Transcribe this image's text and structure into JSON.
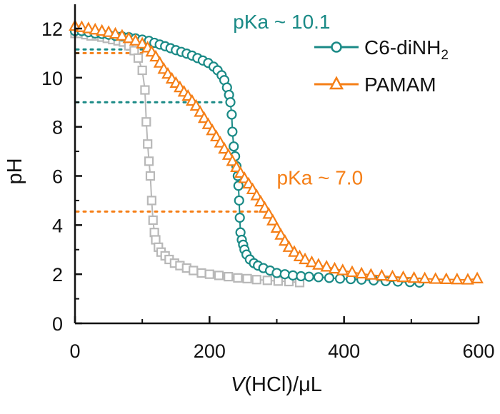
{
  "chart_data": {
    "type": "scatter",
    "title": "",
    "xlabel_italic": "V",
    "xlabel_rest": "(HCl)/μL",
    "ylabel": "pH",
    "xlim": [
      0,
      600
    ],
    "ylim": [
      0,
      13
    ],
    "xticks": [
      0,
      200,
      400,
      600
    ],
    "yticks": [
      0,
      2,
      4,
      6,
      8,
      10,
      12
    ],
    "grid": false,
    "legend_position": "top-right",
    "colors": {
      "c6": "#1a8a86",
      "pamam": "#f57f17",
      "control": "#b8b8b8",
      "axis": "#111111"
    },
    "series": [
      {
        "name": "control",
        "label": "",
        "marker": "square",
        "points": [
          [
            0,
            11.8
          ],
          [
            8,
            11.8
          ],
          [
            16,
            11.75
          ],
          [
            24,
            11.7
          ],
          [
            32,
            11.7
          ],
          [
            40,
            11.65
          ],
          [
            48,
            11.6
          ],
          [
            56,
            11.55
          ],
          [
            64,
            11.5
          ],
          [
            72,
            11.45
          ],
          [
            80,
            11.3
          ],
          [
            88,
            11.1
          ],
          [
            94,
            10.8
          ],
          [
            100,
            10.3
          ],
          [
            104,
            9.5
          ],
          [
            106,
            8.2
          ],
          [
            108,
            7.3
          ],
          [
            110,
            6.6
          ],
          [
            112,
            6.0
          ],
          [
            114,
            5.0
          ],
          [
            116,
            4.2
          ],
          [
            118,
            3.7
          ],
          [
            120,
            3.4
          ],
          [
            124,
            3.1
          ],
          [
            128,
            2.9
          ],
          [
            134,
            2.75
          ],
          [
            140,
            2.6
          ],
          [
            148,
            2.45
          ],
          [
            156,
            2.35
          ],
          [
            166,
            2.25
          ],
          [
            176,
            2.15
          ],
          [
            188,
            2.05
          ],
          [
            200,
            2.0
          ],
          [
            214,
            1.95
          ],
          [
            228,
            1.9
          ],
          [
            242,
            1.85
          ],
          [
            256,
            1.82
          ],
          [
            270,
            1.78
          ],
          [
            286,
            1.75
          ],
          [
            302,
            1.72
          ],
          [
            318,
            1.7
          ],
          [
            334,
            1.66
          ]
        ]
      },
      {
        "name": "C6-diNH2",
        "label_main": "C6-diNH",
        "label_sub": "2",
        "marker": "circle",
        "points": [
          [
            0,
            11.9
          ],
          [
            10,
            11.9
          ],
          [
            20,
            11.85
          ],
          [
            30,
            11.8
          ],
          [
            40,
            11.78
          ],
          [
            50,
            11.75
          ],
          [
            60,
            11.7
          ],
          [
            70,
            11.68
          ],
          [
            80,
            11.65
          ],
          [
            90,
            11.6
          ],
          [
            100,
            11.55
          ],
          [
            110,
            11.5
          ],
          [
            118,
            11.42
          ],
          [
            126,
            11.35
          ],
          [
            134,
            11.28
          ],
          [
            142,
            11.2
          ],
          [
            150,
            11.12
          ],
          [
            158,
            11.05
          ],
          [
            166,
            10.98
          ],
          [
            174,
            10.9
          ],
          [
            182,
            10.8
          ],
          [
            190,
            10.7
          ],
          [
            198,
            10.6
          ],
          [
            206,
            10.45
          ],
          [
            212,
            10.3
          ],
          [
            218,
            10.1
          ],
          [
            222,
            9.9
          ],
          [
            226,
            9.6
          ],
          [
            229,
            9.3
          ],
          [
            231,
            9.0
          ],
          [
            233,
            8.5
          ],
          [
            234,
            7.8
          ],
          [
            236,
            7.2
          ],
          [
            238,
            6.8
          ],
          [
            240,
            6.4
          ],
          [
            242,
            6.0
          ],
          [
            243,
            5.6
          ],
          [
            244,
            5.0
          ],
          [
            245,
            4.3
          ],
          [
            246,
            3.7
          ],
          [
            248,
            3.4
          ],
          [
            250,
            3.2
          ],
          [
            252,
            3.0
          ],
          [
            255,
            2.8
          ],
          [
            260,
            2.6
          ],
          [
            266,
            2.45
          ],
          [
            272,
            2.35
          ],
          [
            280,
            2.25
          ],
          [
            290,
            2.15
          ],
          [
            300,
            2.05
          ],
          [
            312,
            2.0
          ],
          [
            324,
            1.95
          ],
          [
            336,
            1.92
          ],
          [
            348,
            1.9
          ],
          [
            362,
            1.88
          ],
          [
            378,
            1.85
          ],
          [
            394,
            1.82
          ],
          [
            410,
            1.8
          ],
          [
            426,
            1.78
          ],
          [
            444,
            1.75
          ],
          [
            462,
            1.72
          ],
          [
            480,
            1.7
          ],
          [
            498,
            1.68
          ],
          [
            512,
            1.66
          ]
        ]
      },
      {
        "name": "PAMAM",
        "label": "PAMAM",
        "marker": "triangle",
        "points": [
          [
            0,
            12.1
          ],
          [
            10,
            12.05
          ],
          [
            20,
            12.0
          ],
          [
            30,
            11.95
          ],
          [
            40,
            11.9
          ],
          [
            50,
            11.85
          ],
          [
            60,
            11.78
          ],
          [
            70,
            11.7
          ],
          [
            80,
            11.6
          ],
          [
            90,
            11.5
          ],
          [
            100,
            11.38
          ],
          [
            108,
            11.22
          ],
          [
            114,
            11.05
          ],
          [
            120,
            10.85
          ],
          [
            126,
            10.6
          ],
          [
            132,
            10.35
          ],
          [
            138,
            10.15
          ],
          [
            144,
            9.95
          ],
          [
            150,
            9.78
          ],
          [
            156,
            9.6
          ],
          [
            162,
            9.42
          ],
          [
            168,
            9.25
          ],
          [
            174,
            9.05
          ],
          [
            180,
            8.85
          ],
          [
            186,
            8.6
          ],
          [
            192,
            8.35
          ],
          [
            198,
            8.1
          ],
          [
            204,
            7.85
          ],
          [
            210,
            7.6
          ],
          [
            216,
            7.35
          ],
          [
            222,
            7.1
          ],
          [
            228,
            6.85
          ],
          [
            234,
            6.6
          ],
          [
            240,
            6.35
          ],
          [
            246,
            6.12
          ],
          [
            252,
            5.9
          ],
          [
            258,
            5.68
          ],
          [
            264,
            5.45
          ],
          [
            270,
            5.2
          ],
          [
            276,
            4.95
          ],
          [
            282,
            4.7
          ],
          [
            288,
            4.45
          ],
          [
            294,
            4.18
          ],
          [
            300,
            3.88
          ],
          [
            306,
            3.6
          ],
          [
            312,
            3.35
          ],
          [
            318,
            3.1
          ],
          [
            326,
            2.9
          ],
          [
            334,
            2.72
          ],
          [
            342,
            2.6
          ],
          [
            352,
            2.48
          ],
          [
            362,
            2.38
          ],
          [
            374,
            2.3
          ],
          [
            386,
            2.22
          ],
          [
            398,
            2.15
          ],
          [
            412,
            2.08
          ],
          [
            426,
            2.02
          ],
          [
            440,
            1.97
          ],
          [
            456,
            1.93
          ],
          [
            472,
            1.9
          ],
          [
            488,
            1.87
          ],
          [
            504,
            1.84
          ],
          [
            520,
            1.82
          ],
          [
            536,
            1.8
          ],
          [
            552,
            1.79
          ],
          [
            568,
            1.78
          ],
          [
            584,
            1.77
          ],
          [
            598,
            1.82
          ]
        ]
      }
    ],
    "reference_lines": [
      {
        "series": "C6-diNH2",
        "y": 11.15,
        "x_end": 115
      },
      {
        "series": "C6-diNH2",
        "y": 9.0,
        "x_end": 228
      },
      {
        "series": "PAMAM",
        "y": 11.0,
        "x_end": 100
      },
      {
        "series": "PAMAM",
        "y": 4.55,
        "x_end": 290
      }
    ],
    "annotations": [
      {
        "text": "pKa ~ 10.1",
        "series": "C6-diNH2",
        "x": 235,
        "y": 12.0
      },
      {
        "text": "pKa ~ 7.0",
        "series": "PAMAM",
        "x": 300,
        "y": 5.65
      }
    ]
  }
}
